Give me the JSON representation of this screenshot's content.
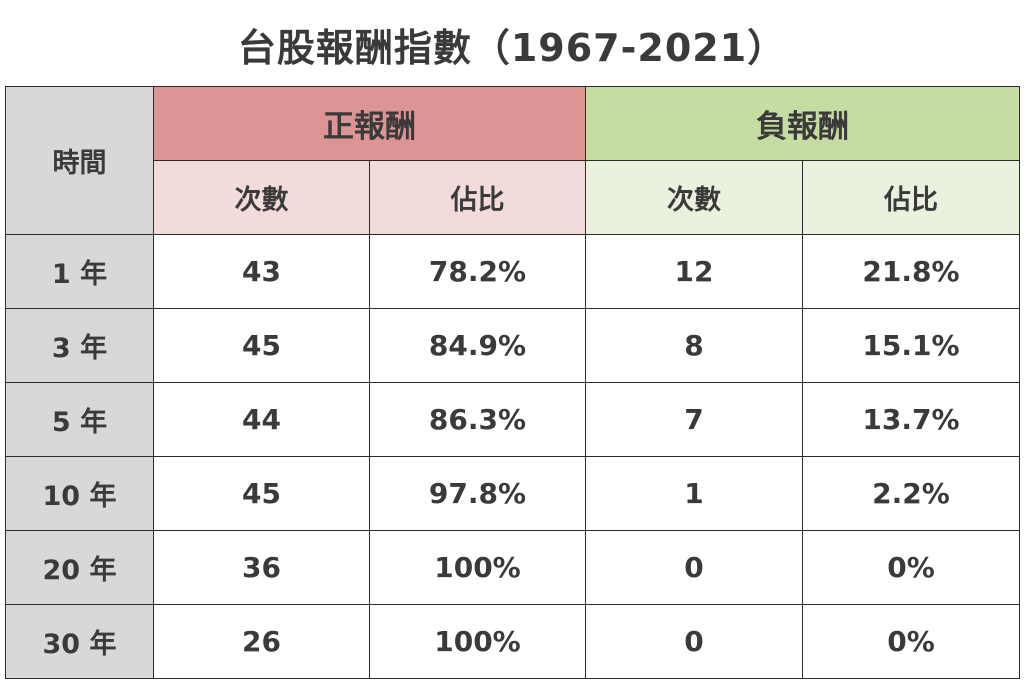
{
  "title": "台股報酬指數（1967-2021）",
  "header": {
    "time": "時間",
    "positive": "正報酬",
    "negative": "負報酬",
    "count": "次數",
    "ratio": "佔比"
  },
  "rows": [
    {
      "period": "1 年",
      "pos_count": "43",
      "pos_ratio": "78.2%",
      "neg_count": "12",
      "neg_ratio": "21.8%"
    },
    {
      "period": "3 年",
      "pos_count": "45",
      "pos_ratio": "84.9%",
      "neg_count": "8",
      "neg_ratio": "15.1%"
    },
    {
      "period": "5 年",
      "pos_count": "44",
      "pos_ratio": "86.3%",
      "neg_count": "7",
      "neg_ratio": "13.7%"
    },
    {
      "period": "10 年",
      "pos_count": "45",
      "pos_ratio": "97.8%",
      "neg_count": "1",
      "neg_ratio": "2.2%"
    },
    {
      "period": "20 年",
      "pos_count": "36",
      "pos_ratio": "100%",
      "neg_count": "0",
      "neg_ratio": "0%"
    },
    {
      "period": "30 年",
      "pos_count": "26",
      "pos_ratio": "100%",
      "neg_count": "0",
      "neg_ratio": "0%"
    }
  ],
  "colors": {
    "positive_header": "#dc9494",
    "positive_subheader": "#f2dbdb",
    "negative_header": "#c5dca2",
    "negative_subheader": "#ebf1df",
    "time_column": "#d8d8d8"
  }
}
